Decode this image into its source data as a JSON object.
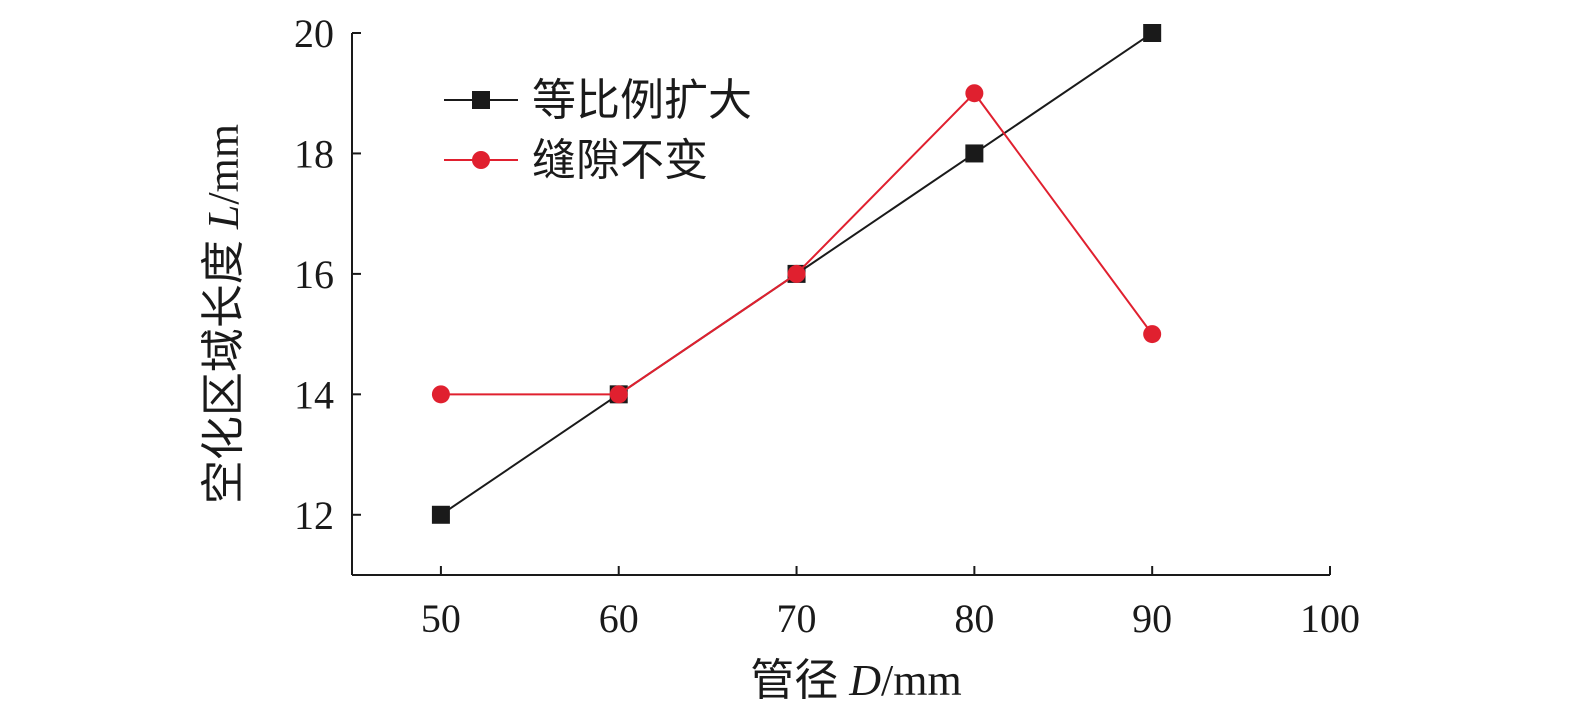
{
  "chart_data": {
    "type": "line",
    "xlabel": {
      "prefix": "管径 ",
      "var": "D",
      "unit": "/mm"
    },
    "ylabel": {
      "prefix": "空化区域长度 ",
      "var": "L",
      "unit": "/mm"
    },
    "xlim": [
      45,
      100
    ],
    "ylim": [
      11,
      20
    ],
    "x_ticks": [
      50,
      60,
      70,
      80,
      90,
      100
    ],
    "y_ticks": [
      12,
      14,
      16,
      18,
      20
    ],
    "grid": false,
    "legend_position": "top-left",
    "series": [
      {
        "name": "等比例扩大",
        "marker": "square",
        "color": "#1a1a1a",
        "x": [
          50,
          60,
          70,
          80,
          90
        ],
        "y": [
          12,
          14,
          16,
          18,
          20
        ]
      },
      {
        "name": "缝隙不变",
        "marker": "circle",
        "color": "#e0202f",
        "x": [
          50,
          60,
          70,
          80,
          90
        ],
        "y": [
          14,
          14,
          16,
          19,
          15
        ]
      }
    ]
  }
}
